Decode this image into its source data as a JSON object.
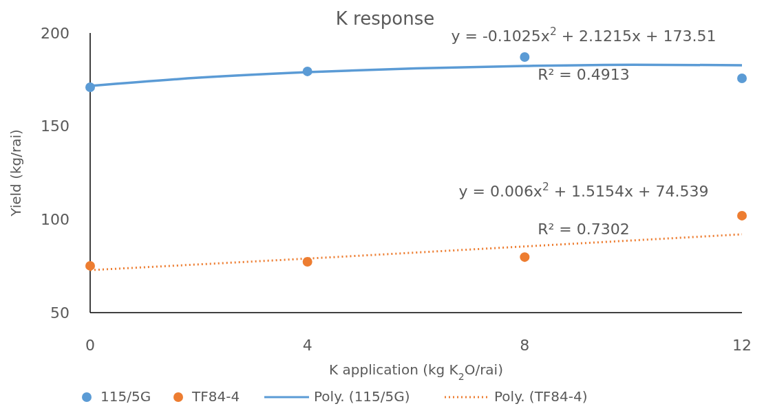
{
  "chart_data": {
    "type": "scatter",
    "title": "K response",
    "xlabel": "K application (kg K$_{2}$O/rai)",
    "ylabel": "Yield (kg/rai)",
    "x": [
      0,
      4,
      8,
      12
    ],
    "xlim": [
      0,
      12
    ],
    "xticks": [
      0,
      4,
      8,
      12
    ],
    "ylim": [
      50,
      200
    ],
    "yticks": [
      50,
      100,
      150,
      200
    ],
    "grid": false,
    "legend": "bottom",
    "marker": "circle",
    "series": [
      {
        "name": "115/5G",
        "color": "#5b9bd5",
        "values": [
          170.9,
          179.4,
          187.1,
          175.7
        ]
      },
      {
        "name": "TF84-4",
        "color": "#ed7d31",
        "values": [
          75.1,
          77.3,
          79.8,
          102
        ]
      },
      {
        "name": "Poly. (115/5G)",
        "type": "line",
        "marker": "none",
        "line_style": "solid",
        "color": "#5b9bd5",
        "x": [
          0,
          2,
          4,
          6,
          8,
          10,
          12
        ],
        "values": [
          171.6,
          176,
          179,
          181,
          182.3,
          183,
          182.7
        ]
      },
      {
        "name": "Poly. (TF84-4)",
        "type": "line",
        "marker": "none",
        "line_style": "dotted",
        "color": "#ed7d31",
        "x": [
          0,
          4,
          8,
          12
        ],
        "values": [
          72.8,
          79,
          85.5,
          92
        ]
      }
    ],
    "annotations": [
      "y = -0.1025x$^{2}$ + 2.1215x + 173.51",
      "R² = 0.4913",
      "y = 0.006x$^{2}$ + 1.5154x + 74.539",
      "R² = 0.7302"
    ]
  }
}
